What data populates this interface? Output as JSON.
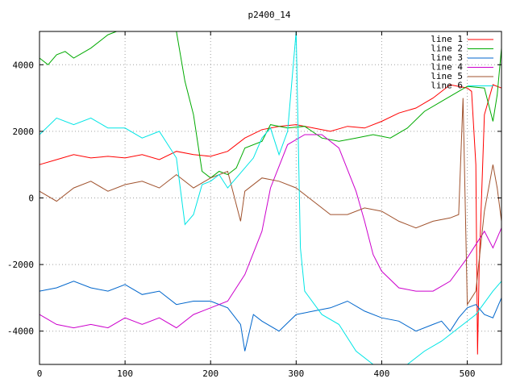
{
  "chart_data": {
    "type": "line",
    "title": "p2400_14",
    "xlabel": "",
    "ylabel": "",
    "xlim": [
      0,
      540
    ],
    "ylim": [
      -5000,
      5000
    ],
    "xticks": [
      0,
      100,
      200,
      300,
      400,
      500
    ],
    "yticks": [
      -4000,
      -2000,
      0,
      2000,
      4000
    ],
    "grid": true,
    "legend_position": "top-right",
    "series": [
      {
        "name": "line 1",
        "color": "#ff0000",
        "points": [
          [
            0,
            1000
          ],
          [
            20,
            1150
          ],
          [
            40,
            1300
          ],
          [
            60,
            1200
          ],
          [
            80,
            1250
          ],
          [
            100,
            1200
          ],
          [
            120,
            1300
          ],
          [
            140,
            1150
          ],
          [
            160,
            1400
          ],
          [
            180,
            1300
          ],
          [
            200,
            1250
          ],
          [
            220,
            1400
          ],
          [
            240,
            1800
          ],
          [
            260,
            2050
          ],
          [
            280,
            2150
          ],
          [
            300,
            2200
          ],
          [
            320,
            2100
          ],
          [
            340,
            2000
          ],
          [
            360,
            2150
          ],
          [
            380,
            2100
          ],
          [
            400,
            2300
          ],
          [
            420,
            2550
          ],
          [
            440,
            2700
          ],
          [
            460,
            3000
          ],
          [
            480,
            3400
          ],
          [
            500,
            3300
          ],
          [
            505,
            3200
          ],
          [
            510,
            1000
          ],
          [
            512,
            -4700
          ],
          [
            514,
            -2000
          ],
          [
            520,
            2500
          ],
          [
            530,
            3400
          ],
          [
            540,
            3300
          ]
        ]
      },
      {
        "name": "line 2",
        "color": "#00aa00",
        "points": [
          [
            0,
            4200
          ],
          [
            10,
            4000
          ],
          [
            20,
            4300
          ],
          [
            30,
            4400
          ],
          [
            40,
            4200
          ],
          [
            60,
            4500
          ],
          [
            80,
            4900
          ],
          [
            90,
            5000
          ],
          [
            100,
            5000
          ],
          [
            110,
            5000
          ],
          [
            150,
            5000
          ],
          [
            160,
            5000
          ],
          [
            170,
            3500
          ],
          [
            180,
            2500
          ],
          [
            190,
            800
          ],
          [
            200,
            600
          ],
          [
            210,
            800
          ],
          [
            220,
            700
          ],
          [
            230,
            900
          ],
          [
            240,
            1500
          ],
          [
            260,
            1700
          ],
          [
            270,
            2200
          ],
          [
            290,
            2100
          ],
          [
            310,
            2150
          ],
          [
            330,
            1800
          ],
          [
            350,
            1700
          ],
          [
            370,
            1800
          ],
          [
            390,
            1900
          ],
          [
            410,
            1800
          ],
          [
            430,
            2100
          ],
          [
            450,
            2600
          ],
          [
            470,
            2900
          ],
          [
            490,
            3200
          ],
          [
            500,
            3350
          ],
          [
            520,
            3300
          ],
          [
            530,
            2300
          ],
          [
            535,
            3100
          ],
          [
            540,
            4500
          ]
        ]
      },
      {
        "name": "line 3",
        "color": "#0066cc",
        "points": [
          [
            0,
            -2800
          ],
          [
            20,
            -2700
          ],
          [
            40,
            -2500
          ],
          [
            60,
            -2700
          ],
          [
            80,
            -2800
          ],
          [
            100,
            -2600
          ],
          [
            120,
            -2900
          ],
          [
            140,
            -2800
          ],
          [
            160,
            -3200
          ],
          [
            180,
            -3100
          ],
          [
            200,
            -3100
          ],
          [
            220,
            -3300
          ],
          [
            235,
            -3800
          ],
          [
            240,
            -4600
          ],
          [
            250,
            -3500
          ],
          [
            260,
            -3700
          ],
          [
            280,
            -4000
          ],
          [
            300,
            -3500
          ],
          [
            320,
            -3400
          ],
          [
            340,
            -3300
          ],
          [
            360,
            -3100
          ],
          [
            380,
            -3400
          ],
          [
            400,
            -3600
          ],
          [
            420,
            -3700
          ],
          [
            440,
            -4000
          ],
          [
            460,
            -3800
          ],
          [
            470,
            -3700
          ],
          [
            480,
            -4000
          ],
          [
            490,
            -3600
          ],
          [
            500,
            -3300
          ],
          [
            510,
            -3200
          ],
          [
            520,
            -3500
          ],
          [
            530,
            -3600
          ],
          [
            540,
            -3000
          ]
        ]
      },
      {
        "name": "line 4",
        "color": "#cc00cc",
        "points": [
          [
            0,
            -3500
          ],
          [
            20,
            -3800
          ],
          [
            40,
            -3900
          ],
          [
            60,
            -3800
          ],
          [
            80,
            -3900
          ],
          [
            100,
            -3600
          ],
          [
            120,
            -3800
          ],
          [
            140,
            -3600
          ],
          [
            160,
            -3900
          ],
          [
            180,
            -3500
          ],
          [
            200,
            -3300
          ],
          [
            220,
            -3100
          ],
          [
            240,
            -2300
          ],
          [
            260,
            -1000
          ],
          [
            270,
            300
          ],
          [
            290,
            1600
          ],
          [
            310,
            1900
          ],
          [
            330,
            1900
          ],
          [
            350,
            1500
          ],
          [
            370,
            200
          ],
          [
            380,
            -700
          ],
          [
            390,
            -1700
          ],
          [
            400,
            -2200
          ],
          [
            420,
            -2700
          ],
          [
            440,
            -2800
          ],
          [
            460,
            -2800
          ],
          [
            480,
            -2500
          ],
          [
            500,
            -1800
          ],
          [
            520,
            -1000
          ],
          [
            530,
            -1500
          ],
          [
            540,
            -900
          ]
        ]
      },
      {
        "name": "line 5",
        "color": "#a0522d",
        "points": [
          [
            0,
            200
          ],
          [
            20,
            -100
          ],
          [
            40,
            300
          ],
          [
            60,
            500
          ],
          [
            80,
            200
          ],
          [
            100,
            400
          ],
          [
            120,
            500
          ],
          [
            140,
            300
          ],
          [
            160,
            700
          ],
          [
            180,
            300
          ],
          [
            200,
            600
          ],
          [
            220,
            800
          ],
          [
            235,
            -700
          ],
          [
            240,
            200
          ],
          [
            260,
            600
          ],
          [
            280,
            500
          ],
          [
            300,
            300
          ],
          [
            320,
            -100
          ],
          [
            340,
            -500
          ],
          [
            360,
            -500
          ],
          [
            380,
            -300
          ],
          [
            400,
            -400
          ],
          [
            420,
            -700
          ],
          [
            440,
            -900
          ],
          [
            460,
            -700
          ],
          [
            480,
            -600
          ],
          [
            490,
            -500
          ],
          [
            495,
            3000
          ],
          [
            500,
            -3200
          ],
          [
            510,
            -2800
          ],
          [
            520,
            -400
          ],
          [
            530,
            1000
          ],
          [
            535,
            300
          ],
          [
            540,
            -700
          ]
        ]
      },
      {
        "name": "line 6",
        "color": "#00e5e5",
        "points": [
          [
            0,
            1900
          ],
          [
            20,
            2400
          ],
          [
            40,
            2200
          ],
          [
            60,
            2400
          ],
          [
            80,
            2100
          ],
          [
            100,
            2100
          ],
          [
            120,
            1800
          ],
          [
            140,
            2000
          ],
          [
            160,
            1200
          ],
          [
            170,
            -800
          ],
          [
            180,
            -500
          ],
          [
            190,
            400
          ],
          [
            200,
            500
          ],
          [
            210,
            700
          ],
          [
            220,
            300
          ],
          [
            230,
            600
          ],
          [
            250,
            1200
          ],
          [
            260,
            1800
          ],
          [
            270,
            2100
          ],
          [
            280,
            1300
          ],
          [
            290,
            2000
          ],
          [
            300,
            5000
          ],
          [
            305,
            -1500
          ],
          [
            310,
            -2800
          ],
          [
            330,
            -3500
          ],
          [
            350,
            -3800
          ],
          [
            370,
            -4600
          ],
          [
            390,
            -5000
          ],
          [
            410,
            -5000
          ],
          [
            430,
            -5000
          ],
          [
            450,
            -4600
          ],
          [
            470,
            -4300
          ],
          [
            490,
            -3900
          ],
          [
            510,
            -3500
          ],
          [
            530,
            -2800
          ],
          [
            540,
            -2500
          ]
        ]
      }
    ]
  }
}
